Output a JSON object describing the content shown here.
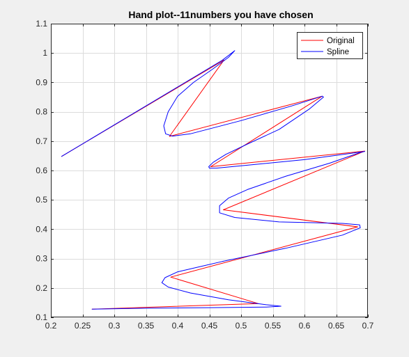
{
  "chart_data": {
    "type": "line",
    "title": "Hand plot--11numbers you have chosen",
    "xlabel": "",
    "ylabel": "",
    "xlim": [
      0.2,
      0.7
    ],
    "ylim": [
      0.1,
      1.1
    ],
    "xticks": [
      0.2,
      0.25,
      0.3,
      0.35,
      0.4,
      0.45,
      0.5,
      0.55,
      0.6,
      0.65,
      0.7
    ],
    "yticks": [
      0.1,
      0.2,
      0.3,
      0.4,
      0.5,
      0.6,
      0.7,
      0.8,
      0.9,
      1.0,
      1.1
    ],
    "xtick_labels": [
      "0.2",
      "0.25",
      "0.3",
      "0.35",
      "0.4",
      "0.45",
      "0.5",
      "0.55",
      "0.6",
      "0.65",
      "0.7"
    ],
    "ytick_labels": [
      "0.1",
      "0.2",
      "0.3",
      "0.4",
      "0.5",
      "0.6",
      "0.7",
      "0.8",
      "0.9",
      "1",
      "1.1"
    ],
    "grid": true,
    "legend_position": "top-right",
    "series": [
      {
        "name": "Original",
        "color": "#ff0000",
        "x": [
          0.217,
          0.473,
          0.387,
          0.628,
          0.452,
          0.695,
          0.472,
          0.684,
          0.389,
          0.527,
          0.265
        ],
        "y": [
          0.648,
          0.976,
          0.716,
          0.853,
          0.613,
          0.666,
          0.466,
          0.408,
          0.237,
          0.147,
          0.128
        ]
      },
      {
        "name": "Spline",
        "color": "#0000ff",
        "x": [
          0.217,
          0.35,
          0.47,
          0.487,
          0.49,
          0.48,
          0.455,
          0.425,
          0.4,
          0.385,
          0.378,
          0.381,
          0.392,
          0.42,
          0.5,
          0.58,
          0.628,
          0.63,
          0.608,
          0.56,
          0.51,
          0.476,
          0.456,
          0.449,
          0.45,
          0.461,
          0.5,
          0.6,
          0.695,
          0.689,
          0.64,
          0.57,
          0.51,
          0.48,
          0.466,
          0.466,
          0.49,
          0.56,
          0.66,
          0.687,
          0.688,
          0.66,
          0.57,
          0.47,
          0.4,
          0.38,
          0.375,
          0.385,
          0.42,
          0.48,
          0.54,
          0.563,
          0.54,
          0.45,
          0.35,
          0.265
        ],
        "y": [
          0.648,
          0.82,
          0.975,
          1.003,
          1.008,
          0.985,
          0.945,
          0.9,
          0.853,
          0.8,
          0.752,
          0.725,
          0.717,
          0.725,
          0.77,
          0.82,
          0.853,
          0.85,
          0.81,
          0.74,
          0.69,
          0.655,
          0.628,
          0.613,
          0.608,
          0.608,
          0.616,
          0.637,
          0.665,
          0.662,
          0.625,
          0.58,
          0.535,
          0.506,
          0.48,
          0.456,
          0.44,
          0.425,
          0.42,
          0.415,
          0.405,
          0.38,
          0.335,
          0.29,
          0.255,
          0.235,
          0.218,
          0.203,
          0.183,
          0.16,
          0.143,
          0.138,
          0.135,
          0.133,
          0.131,
          0.128
        ]
      }
    ]
  }
}
